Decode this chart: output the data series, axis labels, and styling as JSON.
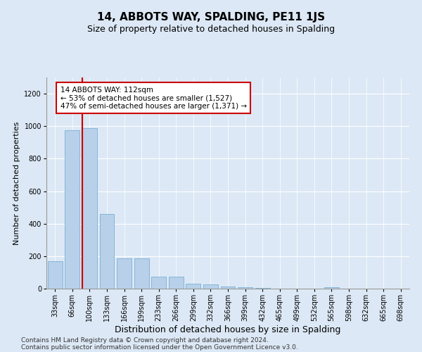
{
  "title": "14, ABBOTS WAY, SPALDING, PE11 1JS",
  "subtitle": "Size of property relative to detached houses in Spalding",
  "xlabel": "Distribution of detached houses by size in Spalding",
  "ylabel": "Number of detached properties",
  "categories": [
    "33sqm",
    "66sqm",
    "100sqm",
    "133sqm",
    "166sqm",
    "199sqm",
    "233sqm",
    "266sqm",
    "299sqm",
    "332sqm",
    "366sqm",
    "399sqm",
    "432sqm",
    "465sqm",
    "499sqm",
    "532sqm",
    "565sqm",
    "598sqm",
    "632sqm",
    "665sqm",
    "698sqm"
  ],
  "values": [
    170,
    975,
    990,
    460,
    185,
    185,
    75,
    75,
    30,
    25,
    15,
    10,
    5,
    0,
    0,
    0,
    10,
    0,
    0,
    0,
    0
  ],
  "bar_color": "#b8d0ea",
  "bar_edge_color": "#7aafd4",
  "highlight_bar_index": 2,
  "highlight_line_color": "#cc0000",
  "ylim": [
    0,
    1300
  ],
  "yticks": [
    0,
    200,
    400,
    600,
    800,
    1000,
    1200
  ],
  "annotation_text": "14 ABBOTS WAY: 112sqm\n← 53% of detached houses are smaller (1,527)\n47% of semi-detached houses are larger (1,371) →",
  "annotation_box_color": "#ffffff",
  "annotation_box_edge_color": "#cc0000",
  "footer_line1": "Contains HM Land Registry data © Crown copyright and database right 2024.",
  "footer_line2": "Contains public sector information licensed under the Open Government Licence v3.0.",
  "background_color": "#dce8f5",
  "plot_bg_color": "#dce8f5",
  "title_fontsize": 11,
  "subtitle_fontsize": 9,
  "xlabel_fontsize": 9,
  "ylabel_fontsize": 8,
  "tick_fontsize": 7,
  "annotation_fontsize": 7.5,
  "footer_fontsize": 6.5
}
